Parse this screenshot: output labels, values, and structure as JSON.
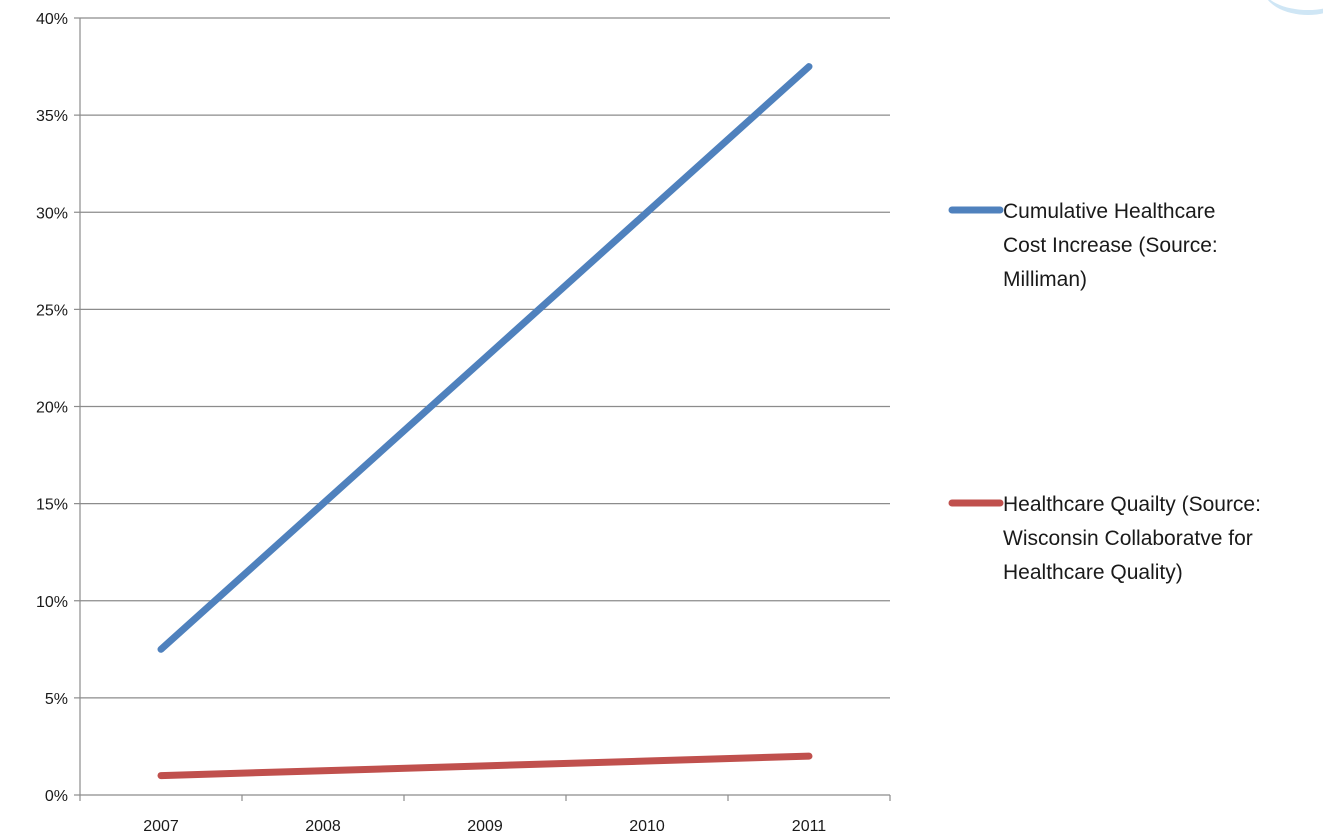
{
  "chart_data": {
    "type": "line",
    "categories": [
      "2007",
      "2008",
      "2009",
      "2010",
      "2011"
    ],
    "ylim": [
      0,
      40
    ],
    "y_ticks": [
      0,
      5,
      10,
      15,
      20,
      25,
      30,
      35,
      40
    ],
    "y_tick_labels": [
      "0%",
      "5%",
      "10%",
      "15%",
      "20%",
      "25%",
      "30%",
      "35%",
      "40%"
    ],
    "grid": true,
    "legend_position": "right",
    "series": [
      {
        "name": "Cumulative Healthcare Cost Increase (Source: Milliman)",
        "legend_lines": [
          "Cumulative Healthcare",
          "Cost Increase (Source:",
          "Milliman)"
        ],
        "color": "#4f81bd",
        "values": [
          7.5,
          15,
          22.5,
          30,
          37.5
        ]
      },
      {
        "name": "Healthcare Quailty (Source: Wisconsin Collaboratve for Healthcare Quality)",
        "legend_lines": [
          "Healthcare Quailty (Source:",
          "Wisconsin Collaboratve for",
          "Healthcare Quality)"
        ],
        "color": "#c0504d",
        "values": [
          1.0,
          1.25,
          1.5,
          1.75,
          2.0
        ]
      }
    ]
  }
}
